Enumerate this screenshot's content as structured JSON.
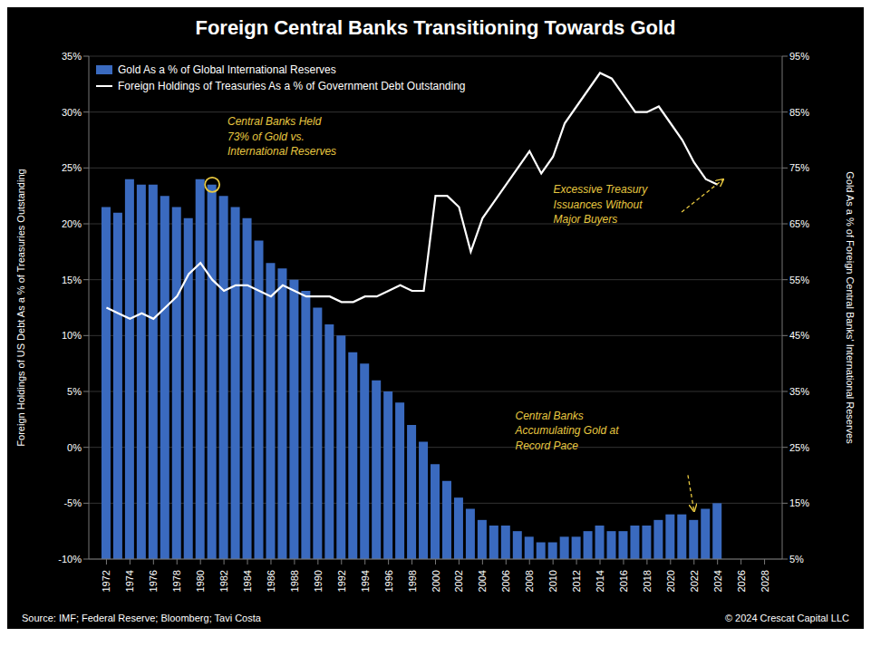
{
  "chart_data": {
    "type": "bar",
    "title": "Foreign Central Banks Transitioning Towards Gold",
    "y_label": "Foreign Holdings of US Debt As a % of Treasuries Outstanding",
    "y2_label": "Gold As a % of Foreign Central Banks' International Reserves",
    "source": "Source: IMF; Federal Reserve; Bloomberg; Tavi Costa",
    "copyright": "© 2024 Crescat Capital LLC",
    "x": [
      1972,
      1973,
      1974,
      1975,
      1976,
      1977,
      1978,
      1979,
      1980,
      1981,
      1982,
      1983,
      1984,
      1985,
      1986,
      1987,
      1988,
      1989,
      1990,
      1991,
      1992,
      1993,
      1994,
      1995,
      1996,
      1997,
      1998,
      1999,
      2000,
      2001,
      2002,
      2003,
      2004,
      2005,
      2006,
      2007,
      2008,
      2009,
      2010,
      2011,
      2012,
      2013,
      2014,
      2015,
      2016,
      2017,
      2018,
      2019,
      2020,
      2021,
      2022,
      2023,
      2024
    ],
    "xlim": [
      1970.5,
      2029.5
    ],
    "xticks": [
      1972,
      1974,
      1976,
      1978,
      1980,
      1982,
      1984,
      1986,
      1988,
      1990,
      1992,
      1994,
      1996,
      1998,
      2000,
      2002,
      2004,
      2006,
      2008,
      2010,
      2012,
      2014,
      2016,
      2018,
      2020,
      2022,
      2024,
      2026,
      2028
    ],
    "ylim": [
      -10,
      35
    ],
    "yticks": [
      {
        "value": -10,
        "label": "-10%"
      },
      {
        "value": -5,
        "label": "-5%"
      },
      {
        "value": 0,
        "label": "0%"
      },
      {
        "value": 5,
        "label": "5%"
      },
      {
        "value": 10,
        "label": "10%"
      },
      {
        "value": 15,
        "label": "15%"
      },
      {
        "value": 20,
        "label": "20%"
      },
      {
        "value": 25,
        "label": "25%"
      },
      {
        "value": 30,
        "label": "30%"
      },
      {
        "value": 35,
        "label": "35%"
      }
    ],
    "y2lim": [
      5,
      95
    ],
    "y2ticks": [
      {
        "value": 5,
        "label": "5%"
      },
      {
        "value": 15,
        "label": "15%"
      },
      {
        "value": 25,
        "label": "25%"
      },
      {
        "value": 35,
        "label": "35%"
      },
      {
        "value": 45,
        "label": "45%"
      },
      {
        "value": 55,
        "label": "55%"
      },
      {
        "value": 65,
        "label": "65%"
      },
      {
        "value": 75,
        "label": "75%"
      },
      {
        "value": 85,
        "label": "85%"
      },
      {
        "value": 95,
        "label": "95%"
      }
    ],
    "grid": true,
    "legend": "upper left",
    "series": [
      {
        "name": "Gold As a % of Global International Reserves",
        "type": "bar",
        "axis": "y2",
        "color": "#3a6abf",
        "values": [
          68,
          67,
          73,
          72,
          72,
          70,
          68,
          66,
          73,
          72,
          70,
          68,
          66,
          62,
          58,
          57,
          55,
          53,
          50,
          47,
          45,
          42,
          40,
          37,
          35,
          33,
          29,
          26,
          22,
          19,
          16,
          14,
          12,
          11,
          11,
          10,
          9,
          8,
          8,
          9,
          9,
          10,
          11,
          10,
          10,
          11,
          11,
          12,
          13,
          13,
          12,
          14,
          15
        ]
      },
      {
        "name": "Foreign Holdings of Treasuries As a % of Government Debt Outstanding",
        "type": "line",
        "color": "#ffffff",
        "values": [
          12.5,
          12.0,
          11.5,
          12.0,
          11.5,
          12.5,
          13.5,
          15.5,
          16.5,
          15.0,
          14.0,
          14.5,
          14.5,
          14.0,
          13.5,
          14.5,
          14.0,
          13.5,
          13.5,
          13.5,
          13.0,
          13.0,
          13.5,
          13.5,
          14.0,
          14.5,
          14.0,
          14.0,
          22.5,
          22.5,
          21.5,
          17.5,
          20.5,
          22.0,
          23.5,
          25.0,
          26.5,
          24.5,
          26.0,
          29.0,
          30.5,
          32.0,
          33.5,
          33.0,
          31.5,
          30.0,
          30.0,
          30.5,
          29.0,
          27.5,
          25.5,
          24.0,
          23.5
        ]
      }
    ],
    "highlight": {
      "x": 1981,
      "value": 72,
      "axis": "y2",
      "color": "#e8c840"
    },
    "annotations": [
      {
        "text": "Central Banks Held\n73% of Gold vs.\nInternational Reserves",
        "color": "#e8c840"
      },
      {
        "text": "Excessive Treasury\nIssuances Without\nMajor Buyers",
        "color": "#e8c840"
      },
      {
        "text": "Central Banks\nAccumulating Gold at\nRecord Pace",
        "color": "#e8c840"
      }
    ]
  }
}
